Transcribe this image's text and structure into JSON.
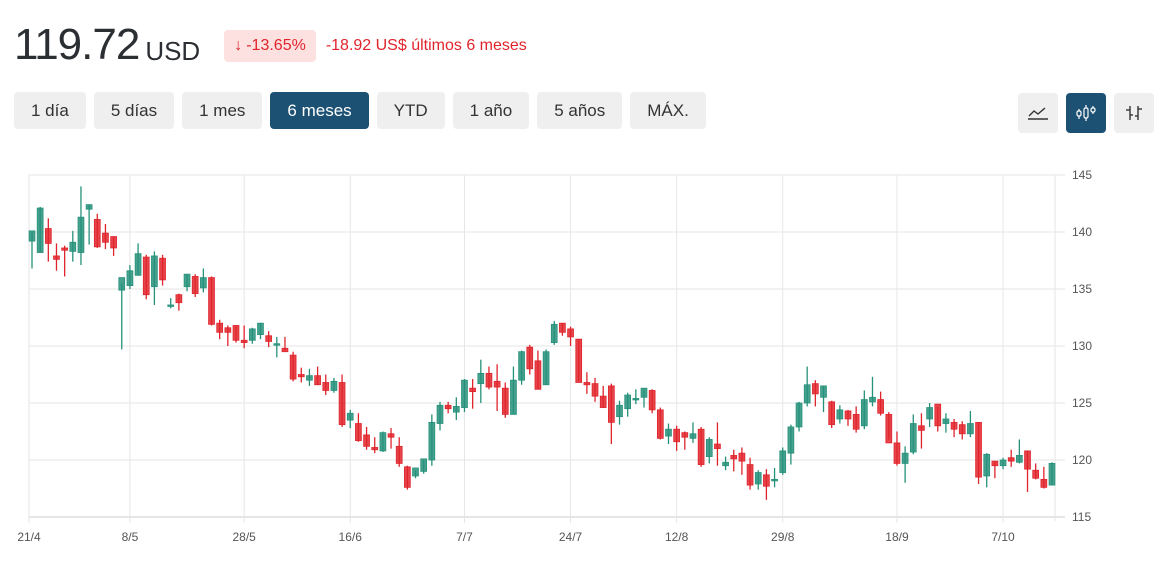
{
  "quote": {
    "price": "119.72",
    "currency": "USD",
    "change_arrow": "↓",
    "change_percent": "-13.65%",
    "change_text": "-18.92 US$ últimos 6 meses",
    "down_color": "#e0242c",
    "up_color": "#26917a"
  },
  "ranges": [
    {
      "label": "1 día",
      "active": false
    },
    {
      "label": "5 días",
      "active": false
    },
    {
      "label": "1 mes",
      "active": false
    },
    {
      "label": "6 meses",
      "active": true
    },
    {
      "label": "YTD",
      "active": false
    },
    {
      "label": "1 año",
      "active": false
    },
    {
      "label": "5 años",
      "active": false
    },
    {
      "label": "MÁX.",
      "active": false
    }
  ],
  "chart_types": [
    {
      "name": "line-chart-icon",
      "active": false
    },
    {
      "name": "candlestick-chart-icon",
      "active": true
    },
    {
      "name": "ohlc-chart-icon",
      "active": false
    }
  ],
  "chart_data": {
    "type": "candlestick",
    "title": "",
    "xlabel": "",
    "ylabel": "",
    "ylim": [
      115,
      145
    ],
    "yticks": [
      145,
      140,
      135,
      130,
      125,
      120,
      115
    ],
    "xticks": [
      {
        "label": "21/4",
        "index": 0
      },
      {
        "label": "8/5",
        "index": 12
      },
      {
        "label": "28/5",
        "index": 26
      },
      {
        "label": "16/6",
        "index": 39
      },
      {
        "label": "7/7",
        "index": 53
      },
      {
        "label": "24/7",
        "index": 66
      },
      {
        "label": "12/8",
        "index": 79
      },
      {
        "label": "29/8",
        "index": 92
      },
      {
        "label": "18/9",
        "index": 106
      },
      {
        "label": "7/10",
        "index": 119
      }
    ],
    "grid": true,
    "candles": [
      {
        "o": 139.2,
        "h": 140.0,
        "l": 136.8,
        "c": 140.1
      },
      {
        "o": 138.2,
        "h": 142.2,
        "l": 138.2,
        "c": 142.1
      },
      {
        "o": 140.3,
        "h": 141.2,
        "l": 137.4,
        "c": 139.0
      },
      {
        "o": 137.9,
        "h": 139.0,
        "l": 136.6,
        "c": 137.6
      },
      {
        "o": 138.6,
        "h": 138.8,
        "l": 136.1,
        "c": 138.4
      },
      {
        "o": 138.3,
        "h": 140.1,
        "l": 137.4,
        "c": 139.1
      },
      {
        "o": 138.2,
        "h": 144.0,
        "l": 137.1,
        "c": 141.3
      },
      {
        "o": 142.0,
        "h": 142.4,
        "l": 138.9,
        "c": 142.4
      },
      {
        "o": 141.1,
        "h": 141.6,
        "l": 138.6,
        "c": 138.7
      },
      {
        "o": 139.9,
        "h": 140.7,
        "l": 138.5,
        "c": 139.1
      },
      {
        "o": 139.6,
        "h": 139.6,
        "l": 137.9,
        "c": 138.6
      },
      {
        "o": 134.9,
        "h": 135.5,
        "l": 129.7,
        "c": 136.0
      },
      {
        "o": 135.3,
        "h": 137.1,
        "l": 135.0,
        "c": 136.6
      },
      {
        "o": 136.2,
        "h": 139.0,
        "l": 136.2,
        "c": 138.1
      },
      {
        "o": 137.8,
        "h": 138.0,
        "l": 134.1,
        "c": 134.5
      },
      {
        "o": 135.2,
        "h": 138.3,
        "l": 133.6,
        "c": 137.9
      },
      {
        "o": 137.7,
        "h": 138.0,
        "l": 135.3,
        "c": 135.8
      },
      {
        "o": 133.5,
        "h": 134.2,
        "l": 133.3,
        "c": 133.6
      },
      {
        "o": 134.5,
        "h": 134.6,
        "l": 133.1,
        "c": 133.8
      },
      {
        "o": 135.2,
        "h": 136.3,
        "l": 134.8,
        "c": 136.3
      },
      {
        "o": 136.1,
        "h": 136.3,
        "l": 134.3,
        "c": 134.6
      },
      {
        "o": 135.1,
        "h": 136.8,
        "l": 134.7,
        "c": 136.0
      },
      {
        "o": 136.0,
        "h": 136.1,
        "l": 131.8,
        "c": 131.9
      },
      {
        "o": 132.0,
        "h": 132.3,
        "l": 130.6,
        "c": 131.2
      },
      {
        "o": 131.6,
        "h": 131.8,
        "l": 130.0,
        "c": 131.2
      },
      {
        "o": 131.8,
        "h": 131.8,
        "l": 130.3,
        "c": 130.5
      },
      {
        "o": 130.5,
        "h": 131.8,
        "l": 129.8,
        "c": 130.3
      },
      {
        "o": 130.5,
        "h": 131.6,
        "l": 130.2,
        "c": 131.5
      },
      {
        "o": 131.0,
        "h": 132.0,
        "l": 130.6,
        "c": 132.0
      },
      {
        "o": 130.9,
        "h": 131.3,
        "l": 129.9,
        "c": 130.4
      },
      {
        "o": 130.2,
        "h": 130.8,
        "l": 129.0,
        "c": 130.2
      },
      {
        "o": 129.8,
        "h": 130.8,
        "l": 129.6,
        "c": 129.5
      },
      {
        "o": 129.2,
        "h": 129.5,
        "l": 126.9,
        "c": 127.1
      },
      {
        "o": 127.5,
        "h": 128.1,
        "l": 126.8,
        "c": 127.3
      },
      {
        "o": 127.0,
        "h": 128.0,
        "l": 126.5,
        "c": 127.4
      },
      {
        "o": 127.4,
        "h": 128.2,
        "l": 126.6,
        "c": 126.6
      },
      {
        "o": 126.8,
        "h": 127.5,
        "l": 125.7,
        "c": 126.1
      },
      {
        "o": 126.1,
        "h": 127.2,
        "l": 125.9,
        "c": 126.9
      },
      {
        "o": 126.8,
        "h": 127.5,
        "l": 122.9,
        "c": 123.1
      },
      {
        "o": 123.5,
        "h": 124.4,
        "l": 122.8,
        "c": 124.1
      },
      {
        "o": 123.2,
        "h": 124.1,
        "l": 121.6,
        "c": 121.7
      },
      {
        "o": 122.2,
        "h": 122.9,
        "l": 120.9,
        "c": 121.2
      },
      {
        "o": 121.1,
        "h": 122.0,
        "l": 120.6,
        "c": 120.9
      },
      {
        "o": 120.8,
        "h": 122.5,
        "l": 120.7,
        "c": 122.4
      },
      {
        "o": 122.3,
        "h": 122.8,
        "l": 121.0,
        "c": 122.0
      },
      {
        "o": 121.2,
        "h": 122.0,
        "l": 119.4,
        "c": 119.7
      },
      {
        "o": 119.4,
        "h": 119.5,
        "l": 117.4,
        "c": 117.6
      },
      {
        "o": 118.6,
        "h": 119.1,
        "l": 118.4,
        "c": 119.3
      },
      {
        "o": 119.0,
        "h": 120.0,
        "l": 118.8,
        "c": 120.1
      },
      {
        "o": 120.0,
        "h": 124.0,
        "l": 119.5,
        "c": 123.3
      },
      {
        "o": 123.2,
        "h": 125.1,
        "l": 122.6,
        "c": 124.8
      },
      {
        "o": 124.8,
        "h": 125.1,
        "l": 124.1,
        "c": 124.5
      },
      {
        "o": 124.2,
        "h": 125.5,
        "l": 123.5,
        "c": 124.7
      },
      {
        "o": 124.6,
        "h": 127.1,
        "l": 124.2,
        "c": 127.0
      },
      {
        "o": 126.3,
        "h": 127.1,
        "l": 124.5,
        "c": 126.0
      },
      {
        "o": 126.7,
        "h": 128.8,
        "l": 125.0,
        "c": 127.6
      },
      {
        "o": 127.6,
        "h": 128.2,
        "l": 126.2,
        "c": 126.4
      },
      {
        "o": 126.9,
        "h": 128.4,
        "l": 124.3,
        "c": 126.4
      },
      {
        "o": 126.3,
        "h": 126.8,
        "l": 123.7,
        "c": 124.0
      },
      {
        "o": 124.0,
        "h": 128.2,
        "l": 124.0,
        "c": 127.0
      },
      {
        "o": 127.0,
        "h": 129.6,
        "l": 126.6,
        "c": 129.5
      },
      {
        "o": 129.9,
        "h": 130.1,
        "l": 127.5,
        "c": 128.0
      },
      {
        "o": 128.7,
        "h": 129.6,
        "l": 126.2,
        "c": 126.2
      },
      {
        "o": 126.6,
        "h": 129.7,
        "l": 126.6,
        "c": 129.5
      },
      {
        "o": 130.3,
        "h": 132.2,
        "l": 130.1,
        "c": 131.9
      },
      {
        "o": 132.0,
        "h": 132.0,
        "l": 130.9,
        "c": 131.2
      },
      {
        "o": 131.5,
        "h": 131.7,
        "l": 130.0,
        "c": 130.8
      },
      {
        "o": 130.6,
        "h": 130.6,
        "l": 126.9,
        "c": 126.8
      },
      {
        "o": 126.8,
        "h": 127.7,
        "l": 125.8,
        "c": 126.6
      },
      {
        "o": 126.7,
        "h": 127.2,
        "l": 125.1,
        "c": 125.6
      },
      {
        "o": 125.6,
        "h": 126.5,
        "l": 124.6,
        "c": 124.6
      },
      {
        "o": 126.5,
        "h": 126.7,
        "l": 121.4,
        "c": 123.3
      },
      {
        "o": 123.8,
        "h": 125.2,
        "l": 123.1,
        "c": 124.8
      },
      {
        "o": 124.5,
        "h": 125.9,
        "l": 123.8,
        "c": 125.7
      },
      {
        "o": 125.3,
        "h": 126.2,
        "l": 124.9,
        "c": 125.4
      },
      {
        "o": 125.5,
        "h": 126.2,
        "l": 124.6,
        "c": 126.3
      },
      {
        "o": 126.1,
        "h": 126.2,
        "l": 124.1,
        "c": 124.4
      },
      {
        "o": 124.4,
        "h": 124.6,
        "l": 121.8,
        "c": 121.9
      },
      {
        "o": 122.1,
        "h": 123.2,
        "l": 121.4,
        "c": 122.7
      },
      {
        "o": 122.7,
        "h": 123.0,
        "l": 120.8,
        "c": 121.6
      },
      {
        "o": 122.4,
        "h": 122.5,
        "l": 120.9,
        "c": 122.0
      },
      {
        "o": 121.9,
        "h": 123.3,
        "l": 121.5,
        "c": 122.3
      },
      {
        "o": 122.7,
        "h": 122.9,
        "l": 119.4,
        "c": 119.6
      },
      {
        "o": 120.3,
        "h": 122.0,
        "l": 119.7,
        "c": 121.8
      },
      {
        "o": 121.4,
        "h": 123.3,
        "l": 119.5,
        "c": 121.0
      },
      {
        "o": 119.5,
        "h": 120.3,
        "l": 119.1,
        "c": 119.8
      },
      {
        "o": 120.4,
        "h": 120.9,
        "l": 119.0,
        "c": 120.1
      },
      {
        "o": 120.6,
        "h": 121.1,
        "l": 118.7,
        "c": 119.9
      },
      {
        "o": 119.6,
        "h": 120.2,
        "l": 117.4,
        "c": 117.8
      },
      {
        "o": 117.9,
        "h": 119.1,
        "l": 117.4,
        "c": 118.9
      },
      {
        "o": 118.7,
        "h": 119.2,
        "l": 116.5,
        "c": 117.7
      },
      {
        "o": 118.2,
        "h": 119.3,
        "l": 117.6,
        "c": 118.3
      },
      {
        "o": 118.9,
        "h": 121.1,
        "l": 118.7,
        "c": 120.8
      },
      {
        "o": 120.6,
        "h": 123.1,
        "l": 119.6,
        "c": 122.9
      },
      {
        "o": 122.9,
        "h": 125.1,
        "l": 122.5,
        "c": 125.0
      },
      {
        "o": 125.0,
        "h": 128.2,
        "l": 124.7,
        "c": 126.6
      },
      {
        "o": 126.7,
        "h": 127.0,
        "l": 124.7,
        "c": 125.8
      },
      {
        "o": 125.5,
        "h": 126.5,
        "l": 124.2,
        "c": 126.5
      },
      {
        "o": 125.1,
        "h": 125.2,
        "l": 122.8,
        "c": 123.1
      },
      {
        "o": 123.6,
        "h": 124.8,
        "l": 123.2,
        "c": 124.4
      },
      {
        "o": 124.3,
        "h": 124.4,
        "l": 123.0,
        "c": 123.6
      },
      {
        "o": 124.0,
        "h": 124.7,
        "l": 122.4,
        "c": 122.7
      },
      {
        "o": 123.0,
        "h": 126.1,
        "l": 122.7,
        "c": 125.3
      },
      {
        "o": 125.1,
        "h": 127.3,
        "l": 124.7,
        "c": 125.5
      },
      {
        "o": 125.3,
        "h": 126.0,
        "l": 123.9,
        "c": 124.1
      },
      {
        "o": 124.0,
        "h": 124.2,
        "l": 121.8,
        "c": 121.5
      },
      {
        "o": 121.5,
        "h": 122.5,
        "l": 119.5,
        "c": 119.7
      },
      {
        "o": 119.7,
        "h": 121.2,
        "l": 118.0,
        "c": 120.6
      },
      {
        "o": 120.7,
        "h": 124.0,
        "l": 120.5,
        "c": 123.2
      },
      {
        "o": 123.0,
        "h": 124.1,
        "l": 121.0,
        "c": 122.6
      },
      {
        "o": 123.6,
        "h": 125.0,
        "l": 122.9,
        "c": 124.6
      },
      {
        "o": 124.9,
        "h": 124.7,
        "l": 122.5,
        "c": 123.0
      },
      {
        "o": 123.2,
        "h": 124.1,
        "l": 122.4,
        "c": 123.6
      },
      {
        "o": 123.3,
        "h": 123.6,
        "l": 122.0,
        "c": 122.7
      },
      {
        "o": 123.1,
        "h": 123.4,
        "l": 121.8,
        "c": 122.3
      },
      {
        "o": 122.3,
        "h": 124.3,
        "l": 122.0,
        "c": 123.2
      },
      {
        "o": 123.3,
        "h": 123.3,
        "l": 117.9,
        "c": 118.5
      },
      {
        "o": 118.6,
        "h": 120.6,
        "l": 117.6,
        "c": 120.5
      },
      {
        "o": 119.9,
        "h": 119.9,
        "l": 118.4,
        "c": 119.5
      },
      {
        "o": 119.5,
        "h": 120.2,
        "l": 119.2,
        "c": 120.0
      },
      {
        "o": 120.2,
        "h": 120.9,
        "l": 119.4,
        "c": 119.9
      },
      {
        "o": 119.8,
        "h": 121.8,
        "l": 119.7,
        "c": 120.4
      },
      {
        "o": 120.8,
        "h": 120.8,
        "l": 117.2,
        "c": 119.2
      },
      {
        "o": 119.1,
        "h": 119.7,
        "l": 118.3,
        "c": 118.4
      },
      {
        "o": 118.3,
        "h": 119.4,
        "l": 117.5,
        "c": 117.6
      },
      {
        "o": 117.8,
        "h": 119.8,
        "l": 117.8,
        "c": 119.7
      }
    ]
  }
}
